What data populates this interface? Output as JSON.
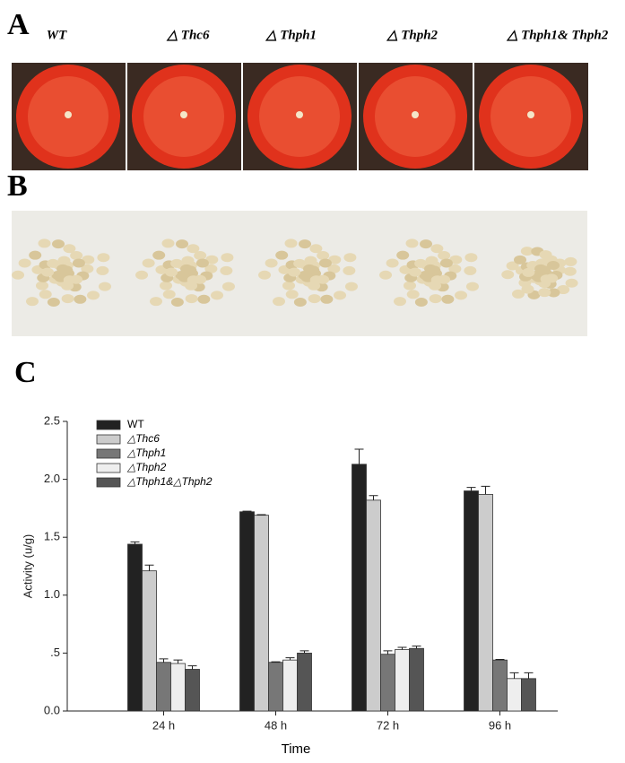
{
  "panels": {
    "a": "A",
    "b": "B",
    "c": "C"
  },
  "plate_labels": [
    "WT",
    "△ Thc6",
    "△ Thph1",
    "△ Thph2",
    "△ Thph1& Thph2"
  ],
  "chart_data": {
    "type": "bar",
    "categories": [
      "24 h",
      "48 h",
      "72 h",
      "96 h"
    ],
    "series": [
      {
        "name": "WT",
        "color": "#222222",
        "values": [
          1.44,
          1.72,
          2.13,
          1.9
        ],
        "errors": [
          0.02,
          0.005,
          0.13,
          0.03
        ]
      },
      {
        "name": "△Thc6",
        "color": "#cccccc",
        "values": [
          1.21,
          1.69,
          1.82,
          1.87
        ],
        "errors": [
          0.05,
          0.005,
          0.04,
          0.07
        ]
      },
      {
        "name": "△Thph1",
        "color": "#777777",
        "values": [
          0.42,
          0.42,
          0.49,
          0.44
        ],
        "errors": [
          0.03,
          0.005,
          0.03,
          0.005
        ]
      },
      {
        "name": "△Thph2",
        "color": "#eeeeee",
        "values": [
          0.41,
          0.44,
          0.53,
          0.28
        ],
        "errors": [
          0.03,
          0.02,
          0.02,
          0.05
        ]
      },
      {
        "name": "△Thph1&△Thph2",
        "color": "#555555",
        "values": [
          0.36,
          0.5,
          0.54,
          0.28
        ],
        "errors": [
          0.03,
          0.02,
          0.02,
          0.05
        ]
      }
    ],
    "ylim": [
      0,
      2.5
    ],
    "yticks": [
      {
        "value": 0,
        "label": "0.0"
      },
      {
        "value": 0.5,
        "label": ".5"
      },
      {
        "value": 1,
        "label": "1.0"
      },
      {
        "value": 1.5,
        "label": "1.5"
      },
      {
        "value": 2,
        "label": "2.0"
      },
      2.5
    ],
    "ylabel": "Activity (u/g)",
    "xlabel": "Time",
    "legend": "upper-left"
  }
}
